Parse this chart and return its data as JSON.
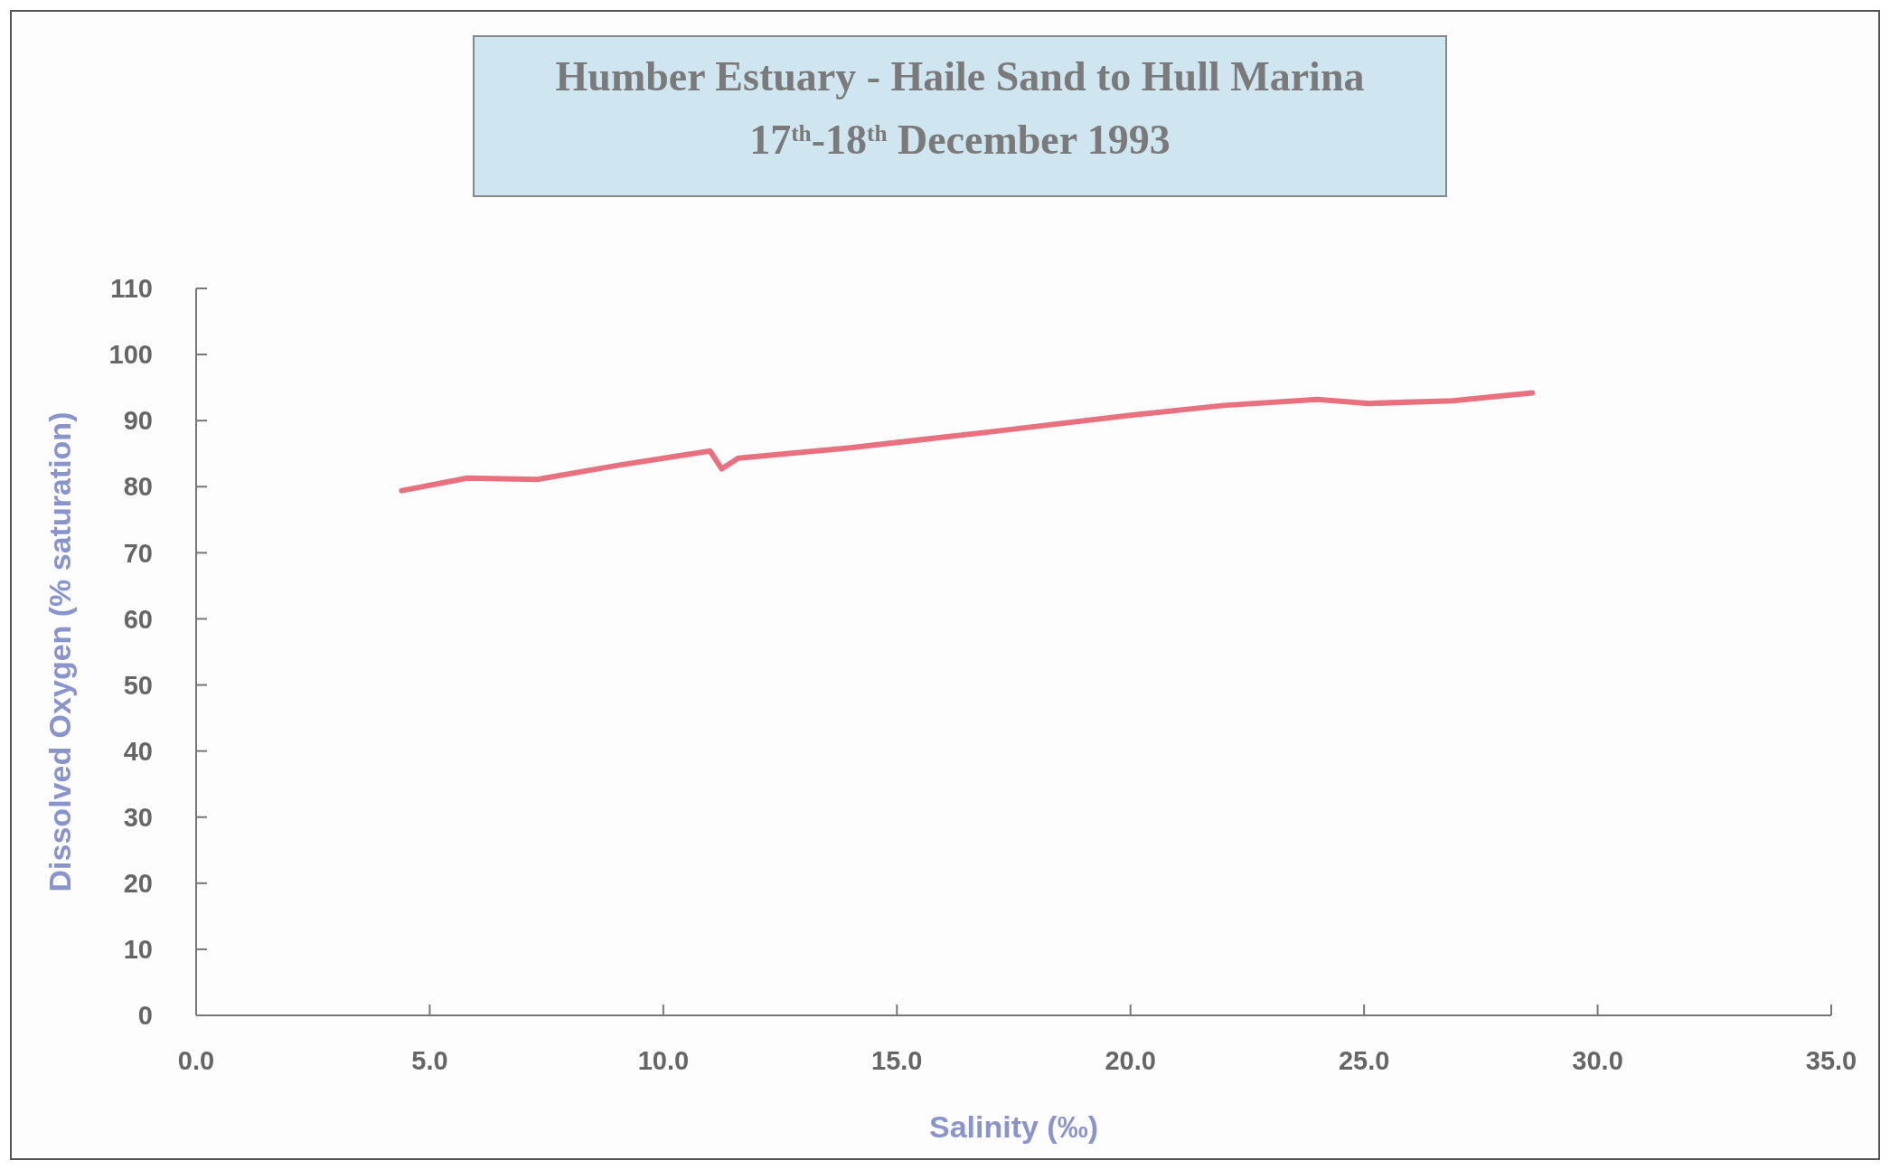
{
  "chart_data": {
    "type": "line",
    "title": "Humber Estuary - Haile Sand to Hull Marina",
    "subtitle": "17$^{th}$-18$^{th}$ December 1993",
    "xlabel": "Salinity (‰)",
    "ylabel": "Dissolved Oxygen (% saturation)",
    "x": [
      4.4,
      5.8,
      7.3,
      9.0,
      11.0,
      11.25,
      11.6,
      14.0,
      17.0,
      20.0,
      22.0,
      24.0,
      25.1,
      26.9,
      28.6
    ],
    "series": [
      {
        "color": "#e8707f",
        "values": [
          79.4,
          81.3,
          81.1,
          83.2,
          85.4,
          82.7,
          84.3,
          85.9,
          88.3,
          90.8,
          92.3,
          93.2,
          92.6,
          93.0,
          94.2
        ]
      }
    ],
    "xlim": [
      0,
      35
    ],
    "xticks": [
      {
        "value": 0,
        "label": "0.0"
      },
      {
        "value": 5,
        "label": "5.0"
      },
      {
        "value": 10,
        "label": "10.0"
      },
      {
        "value": 15,
        "label": "15.0"
      },
      {
        "value": 20,
        "label": "20.0"
      },
      {
        "value": 25,
        "label": "25.0"
      },
      {
        "value": 30,
        "label": "30.0"
      },
      {
        "value": 35,
        "label": "35.0"
      }
    ],
    "ylim": [
      0,
      110
    ],
    "yticks": [
      0,
      10,
      20,
      30,
      40,
      50,
      60,
      70,
      80,
      90,
      100,
      110
    ],
    "grid": false,
    "marker": "none",
    "line_style": "solid"
  }
}
